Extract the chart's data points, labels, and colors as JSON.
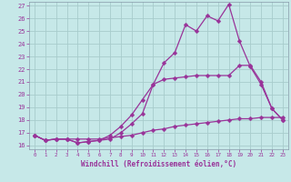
{
  "xlabel": "Windchill (Refroidissement éolien,°C)",
  "bg_color": "#c6e8e8",
  "line_color": "#993399",
  "grid_color": "#a8cccc",
  "spine_color": "#8899aa",
  "xlim": [
    -0.5,
    23.5
  ],
  "ylim": [
    15.7,
    27.3
  ],
  "yticks": [
    16,
    17,
    18,
    19,
    20,
    21,
    22,
    23,
    24,
    25,
    26,
    27
  ],
  "xticks": [
    0,
    1,
    2,
    3,
    4,
    5,
    6,
    7,
    8,
    9,
    10,
    11,
    12,
    13,
    14,
    15,
    16,
    17,
    18,
    19,
    20,
    21,
    22,
    23
  ],
  "line1_x": [
    0,
    1,
    2,
    3,
    4,
    5,
    6,
    7,
    8,
    9,
    10,
    11,
    12,
    13,
    14,
    15,
    16,
    17,
    18,
    19,
    20,
    21,
    22,
    23
  ],
  "line1_y": [
    16.8,
    16.4,
    16.5,
    16.5,
    16.2,
    16.3,
    16.4,
    16.5,
    17.0,
    17.7,
    18.5,
    20.8,
    22.5,
    23.3,
    25.5,
    25.0,
    26.2,
    25.8,
    27.1,
    24.2,
    22.2,
    20.8,
    18.9,
    18.0
  ],
  "line2_x": [
    0,
    1,
    2,
    3,
    4,
    5,
    6,
    7,
    8,
    9,
    10,
    11,
    12,
    13,
    14,
    15,
    16,
    17,
    18,
    19,
    20,
    21,
    22,
    23
  ],
  "line2_y": [
    16.8,
    16.4,
    16.5,
    16.5,
    16.2,
    16.3,
    16.4,
    16.8,
    17.5,
    18.4,
    19.6,
    20.8,
    21.2,
    21.3,
    21.4,
    21.5,
    21.5,
    21.5,
    21.5,
    22.3,
    22.3,
    21.0,
    18.9,
    18.0
  ],
  "line3_x": [
    0,
    1,
    2,
    3,
    4,
    5,
    6,
    7,
    8,
    9,
    10,
    11,
    12,
    13,
    14,
    15,
    16,
    17,
    18,
    19,
    20,
    21,
    22,
    23
  ],
  "line3_y": [
    16.8,
    16.4,
    16.5,
    16.5,
    16.5,
    16.5,
    16.5,
    16.6,
    16.7,
    16.8,
    17.0,
    17.2,
    17.3,
    17.5,
    17.6,
    17.7,
    17.8,
    17.9,
    18.0,
    18.1,
    18.1,
    18.2,
    18.2,
    18.2
  ]
}
